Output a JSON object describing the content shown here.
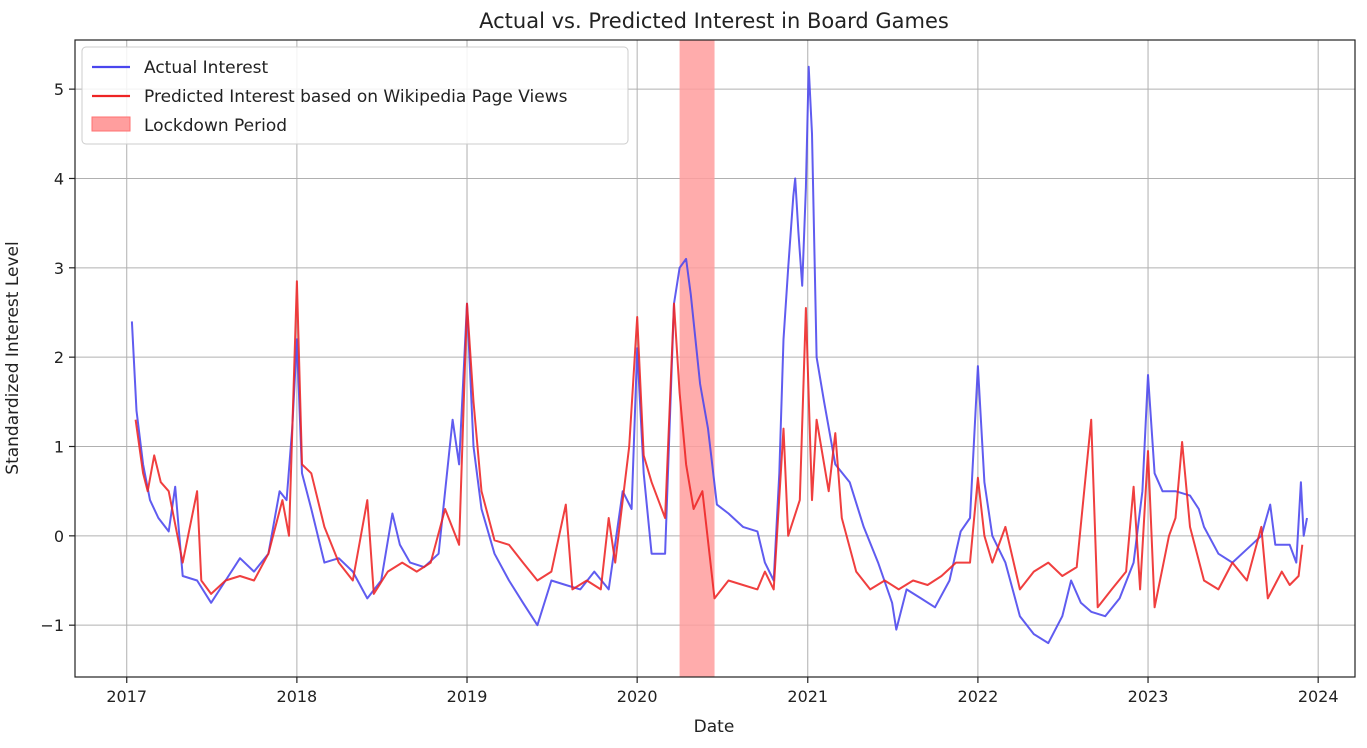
{
  "chart_data": {
    "type": "line",
    "title": "Actual vs. Predicted Interest in Board Games",
    "xlabel": "Date",
    "ylabel": "Standardized Interest Level",
    "xlim": [
      "2016-09-12",
      "2024-03-20"
    ],
    "ylim": [
      -1.58,
      5.55
    ],
    "x_ticks": [
      "2017",
      "2018",
      "2019",
      "2020",
      "2021",
      "2022",
      "2023",
      "2024"
    ],
    "y_ticks": [
      -1,
      0,
      1,
      2,
      3,
      4,
      5
    ],
    "y_tick_labels": [
      "−1",
      "0",
      "1",
      "2",
      "3",
      "4",
      "5"
    ],
    "grid": true,
    "legend_position": "top-left",
    "shaded_region": {
      "label": "Lockdown Period",
      "start": "2020-04-01",
      "end": "2020-06-15",
      "color": "#ff9e9e"
    },
    "series": [
      {
        "name": "Actual Interest",
        "color": "#4a46ee",
        "points": [
          [
            "2017-01-12",
            2.4
          ],
          [
            "2017-01-22",
            1.4
          ],
          [
            "2017-02-05",
            0.8
          ],
          [
            "2017-02-20",
            0.4
          ],
          [
            "2017-03-10",
            0.2
          ],
          [
            "2017-04-01",
            0.05
          ],
          [
            "2017-04-15",
            0.55
          ],
          [
            "2017-05-01",
            -0.45
          ],
          [
            "2017-06-01",
            -0.5
          ],
          [
            "2017-07-01",
            -0.75
          ],
          [
            "2017-08-01",
            -0.5
          ],
          [
            "2017-09-01",
            -0.25
          ],
          [
            "2017-10-01",
            -0.4
          ],
          [
            "2017-11-01",
            -0.2
          ],
          [
            "2017-11-25",
            0.5
          ],
          [
            "2017-12-10",
            0.4
          ],
          [
            "2017-12-22",
            1.2
          ],
          [
            "2018-01-01",
            2.2
          ],
          [
            "2018-01-12",
            0.7
          ],
          [
            "2018-02-01",
            0.3
          ],
          [
            "2018-03-01",
            -0.3
          ],
          [
            "2018-04-01",
            -0.25
          ],
          [
            "2018-05-01",
            -0.4
          ],
          [
            "2018-06-01",
            -0.7
          ],
          [
            "2018-07-01",
            -0.5
          ],
          [
            "2018-07-25",
            0.25
          ],
          [
            "2018-08-10",
            -0.1
          ],
          [
            "2018-09-01",
            -0.3
          ],
          [
            "2018-10-01",
            -0.35
          ],
          [
            "2018-11-01",
            -0.2
          ],
          [
            "2018-12-01",
            1.3
          ],
          [
            "2018-12-15",
            0.8
          ],
          [
            "2019-01-01",
            2.6
          ],
          [
            "2019-01-15",
            1.0
          ],
          [
            "2019-02-01",
            0.3
          ],
          [
            "2019-03-01",
            -0.2
          ],
          [
            "2019-04-01",
            -0.5
          ],
          [
            "2019-05-01",
            -0.75
          ],
          [
            "2019-06-01",
            -1.0
          ],
          [
            "2019-07-01",
            -0.5
          ],
          [
            "2019-08-01",
            -0.55
          ],
          [
            "2019-09-01",
            -0.6
          ],
          [
            "2019-10-01",
            -0.4
          ],
          [
            "2019-11-01",
            -0.6
          ],
          [
            "2019-12-01",
            0.5
          ],
          [
            "2019-12-20",
            0.3
          ],
          [
            "2020-01-01",
            2.1
          ],
          [
            "2020-01-15",
            0.7
          ],
          [
            "2020-02-01",
            -0.2
          ],
          [
            "2020-03-01",
            -0.2
          ],
          [
            "2020-03-20",
            2.6
          ],
          [
            "2020-04-01",
            3.0
          ],
          [
            "2020-04-15",
            3.1
          ],
          [
            "2020-04-25",
            2.7
          ],
          [
            "2020-05-15",
            1.7
          ],
          [
            "2020-06-01",
            1.2
          ],
          [
            "2020-06-10",
            0.8
          ],
          [
            "2020-06-20",
            0.35
          ],
          [
            "2020-07-15",
            0.25
          ],
          [
            "2020-08-15",
            0.1
          ],
          [
            "2020-09-15",
            0.05
          ],
          [
            "2020-10-01",
            -0.3
          ],
          [
            "2020-10-20",
            -0.5
          ],
          [
            "2020-11-01",
            0.7
          ],
          [
            "2020-11-10",
            2.2
          ],
          [
            "2020-11-20",
            3.0
          ],
          [
            "2020-12-01",
            3.8
          ],
          [
            "2020-12-05",
            4.0
          ],
          [
            "2020-12-12",
            3.4
          ],
          [
            "2020-12-20",
            2.8
          ],
          [
            "2020-12-28",
            3.9
          ],
          [
            "2021-01-03",
            5.25
          ],
          [
            "2021-01-10",
            4.5
          ],
          [
            "2021-01-20",
            2.0
          ],
          [
            "2021-02-05",
            1.5
          ],
          [
            "2021-03-01",
            0.8
          ],
          [
            "2021-04-01",
            0.6
          ],
          [
            "2021-05-01",
            0.1
          ],
          [
            "2021-06-01",
            -0.3
          ],
          [
            "2021-07-01",
            -0.75
          ],
          [
            "2021-07-10",
            -1.05
          ],
          [
            "2021-08-01",
            -0.6
          ],
          [
            "2021-09-01",
            -0.7
          ],
          [
            "2021-10-01",
            -0.8
          ],
          [
            "2021-11-01",
            -0.5
          ],
          [
            "2021-11-25",
            0.05
          ],
          [
            "2021-12-15",
            0.2
          ],
          [
            "2022-01-01",
            1.9
          ],
          [
            "2022-01-15",
            0.6
          ],
          [
            "2022-02-01",
            0.0
          ],
          [
            "2022-03-01",
            -0.3
          ],
          [
            "2022-04-01",
            -0.9
          ],
          [
            "2022-05-01",
            -1.1
          ],
          [
            "2022-06-01",
            -1.2
          ],
          [
            "2022-07-01",
            -0.9
          ],
          [
            "2022-07-20",
            -0.5
          ],
          [
            "2022-08-10",
            -0.75
          ],
          [
            "2022-09-01",
            -0.85
          ],
          [
            "2022-10-01",
            -0.9
          ],
          [
            "2022-11-01",
            -0.7
          ],
          [
            "2022-12-01",
            -0.3
          ],
          [
            "2022-12-20",
            0.5
          ],
          [
            "2023-01-01",
            1.8
          ],
          [
            "2023-01-15",
            0.7
          ],
          [
            "2023-02-01",
            0.5
          ],
          [
            "2023-03-01",
            0.5
          ],
          [
            "2023-04-01",
            0.45
          ],
          [
            "2023-04-20",
            0.3
          ],
          [
            "2023-05-01",
            0.1
          ],
          [
            "2023-06-01",
            -0.2
          ],
          [
            "2023-07-01",
            -0.3
          ],
          [
            "2023-08-01",
            -0.15
          ],
          [
            "2023-09-01",
            0.0
          ],
          [
            "2023-09-20",
            0.35
          ],
          [
            "2023-10-01",
            -0.1
          ],
          [
            "2023-11-01",
            -0.1
          ],
          [
            "2023-11-15",
            -0.3
          ],
          [
            "2023-11-25",
            0.6
          ],
          [
            "2023-12-01",
            0.0
          ],
          [
            "2023-12-08",
            0.2
          ]
        ]
      },
      {
        "name": "Predicted Interest based on Wikipedia Page Views",
        "color": "#ee2424",
        "points": [
          [
            "2017-01-20",
            1.3
          ],
          [
            "2017-02-05",
            0.7
          ],
          [
            "2017-02-15",
            0.5
          ],
          [
            "2017-03-01",
            0.9
          ],
          [
            "2017-03-15",
            0.6
          ],
          [
            "2017-04-01",
            0.5
          ],
          [
            "2017-05-01",
            -0.3
          ],
          [
            "2017-06-01",
            0.5
          ],
          [
            "2017-06-10",
            -0.5
          ],
          [
            "2017-07-01",
            -0.65
          ],
          [
            "2017-08-01",
            -0.5
          ],
          [
            "2017-09-01",
            -0.45
          ],
          [
            "2017-10-01",
            -0.5
          ],
          [
            "2017-11-01",
            -0.2
          ],
          [
            "2017-12-01",
            0.4
          ],
          [
            "2017-12-15",
            0.0
          ],
          [
            "2018-01-01",
            2.85
          ],
          [
            "2018-01-12",
            0.8
          ],
          [
            "2018-02-01",
            0.7
          ],
          [
            "2018-03-01",
            0.1
          ],
          [
            "2018-04-01",
            -0.3
          ],
          [
            "2018-05-01",
            -0.5
          ],
          [
            "2018-06-01",
            0.4
          ],
          [
            "2018-06-15",
            -0.65
          ],
          [
            "2018-07-15",
            -0.4
          ],
          [
            "2018-08-15",
            -0.3
          ],
          [
            "2018-09-15",
            -0.4
          ],
          [
            "2018-10-15",
            -0.3
          ],
          [
            "2018-11-15",
            0.3
          ],
          [
            "2018-12-15",
            -0.1
          ],
          [
            "2019-01-01",
            2.6
          ],
          [
            "2019-01-15",
            1.5
          ],
          [
            "2019-02-01",
            0.5
          ],
          [
            "2019-03-01",
            -0.05
          ],
          [
            "2019-04-01",
            -0.1
          ],
          [
            "2019-05-01",
            -0.3
          ],
          [
            "2019-06-01",
            -0.5
          ],
          [
            "2019-07-01",
            -0.4
          ],
          [
            "2019-08-01",
            0.35
          ],
          [
            "2019-08-15",
            -0.6
          ],
          [
            "2019-09-15",
            -0.5
          ],
          [
            "2019-10-15",
            -0.6
          ],
          [
            "2019-11-01",
            0.2
          ],
          [
            "2019-11-15",
            -0.3
          ],
          [
            "2019-12-15",
            1.0
          ],
          [
            "2020-01-01",
            2.45
          ],
          [
            "2020-01-15",
            0.9
          ],
          [
            "2020-02-01",
            0.6
          ],
          [
            "2020-03-01",
            0.2
          ],
          [
            "2020-03-20",
            2.6
          ],
          [
            "2020-04-01",
            1.6
          ],
          [
            "2020-04-15",
            0.8
          ],
          [
            "2020-05-01",
            0.3
          ],
          [
            "2020-05-20",
            0.5
          ],
          [
            "2020-06-15",
            -0.7
          ],
          [
            "2020-07-15",
            -0.5
          ],
          [
            "2020-08-15",
            -0.55
          ],
          [
            "2020-09-15",
            -0.6
          ],
          [
            "2020-10-01",
            -0.4
          ],
          [
            "2020-10-20",
            -0.6
          ],
          [
            "2020-11-10",
            1.2
          ],
          [
            "2020-11-20",
            0.0
          ],
          [
            "2020-12-15",
            0.4
          ],
          [
            "2020-12-28",
            2.55
          ],
          [
            "2021-01-10",
            0.4
          ],
          [
            "2021-01-20",
            1.3
          ],
          [
            "2021-02-15",
            0.5
          ],
          [
            "2021-03-01",
            1.15
          ],
          [
            "2021-03-15",
            0.2
          ],
          [
            "2021-04-15",
            -0.4
          ],
          [
            "2021-05-15",
            -0.6
          ],
          [
            "2021-06-15",
            -0.5
          ],
          [
            "2021-07-15",
            -0.6
          ],
          [
            "2021-08-15",
            -0.5
          ],
          [
            "2021-09-15",
            -0.55
          ],
          [
            "2021-10-15",
            -0.45
          ],
          [
            "2021-11-15",
            -0.3
          ],
          [
            "2021-12-15",
            -0.3
          ],
          [
            "2022-01-01",
            0.65
          ],
          [
            "2022-01-15",
            0.0
          ],
          [
            "2022-02-01",
            -0.3
          ],
          [
            "2022-03-01",
            0.1
          ],
          [
            "2022-04-01",
            -0.6
          ],
          [
            "2022-05-01",
            -0.4
          ],
          [
            "2022-06-01",
            -0.3
          ],
          [
            "2022-07-01",
            -0.45
          ],
          [
            "2022-08-01",
            -0.35
          ],
          [
            "2022-09-01",
            1.3
          ],
          [
            "2022-09-15",
            -0.8
          ],
          [
            "2022-10-15",
            -0.6
          ],
          [
            "2022-11-15",
            -0.4
          ],
          [
            "2022-12-01",
            0.55
          ],
          [
            "2022-12-15",
            -0.6
          ],
          [
            "2023-01-01",
            0.95
          ],
          [
            "2023-01-15",
            -0.8
          ],
          [
            "2023-02-15",
            0.0
          ],
          [
            "2023-03-01",
            0.2
          ],
          [
            "2023-03-15",
            1.05
          ],
          [
            "2023-04-01",
            0.1
          ],
          [
            "2023-05-01",
            -0.5
          ],
          [
            "2023-06-01",
            -0.6
          ],
          [
            "2023-07-01",
            -0.3
          ],
          [
            "2023-08-01",
            -0.5
          ],
          [
            "2023-09-01",
            0.1
          ],
          [
            "2023-09-15",
            -0.7
          ],
          [
            "2023-10-15",
            -0.4
          ],
          [
            "2023-11-01",
            -0.55
          ],
          [
            "2023-11-20",
            -0.45
          ],
          [
            "2023-11-28",
            -0.1
          ]
        ]
      }
    ]
  }
}
